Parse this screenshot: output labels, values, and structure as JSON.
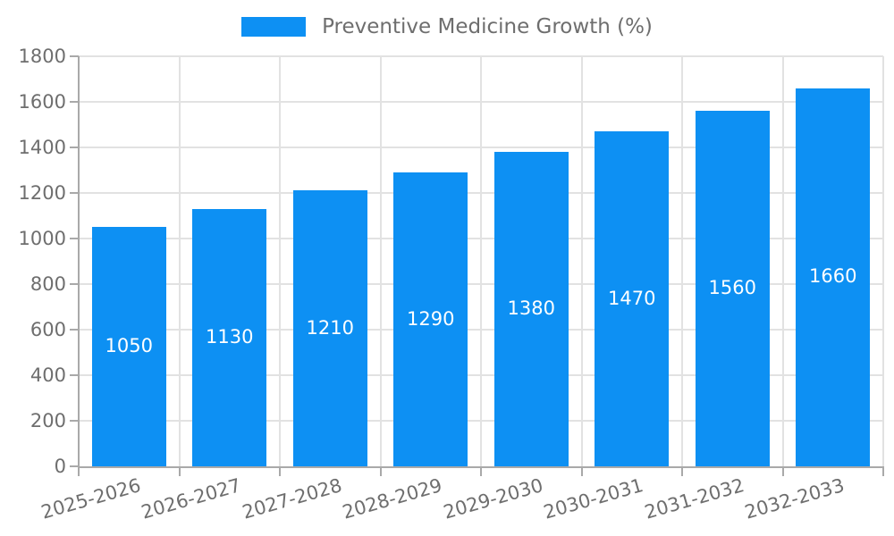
{
  "chart_data": {
    "type": "bar",
    "title": "Preventive Medicine Growth (%)",
    "legend": {
      "label": "Preventive Medicine Growth (%)",
      "position": "top"
    },
    "categories": [
      "2025-2026",
      "2026-2027",
      "2027-2028",
      "2028-2029",
      "2029-2030",
      "2030-2031",
      "2031-2032",
      "2032-2033"
    ],
    "values": [
      1050,
      1130,
      1210,
      1290,
      1380,
      1470,
      1560,
      1660
    ],
    "xlabel": "",
    "ylabel": "",
    "ylim": [
      0,
      1800
    ],
    "yticks": [
      0,
      200,
      400,
      600,
      800,
      1000,
      1200,
      1400,
      1600,
      1800
    ],
    "grid": true,
    "bar_value_labels": "centered-white",
    "x_tick_rotation_deg": -16,
    "colors": {
      "bar": "#0d90f3",
      "bar_label": "#ffffff",
      "axis_text": "#6e6e6e",
      "grid_line": "#e2e2e2",
      "axis_line": "#a9a9a9",
      "background": "#ffffff"
    }
  }
}
